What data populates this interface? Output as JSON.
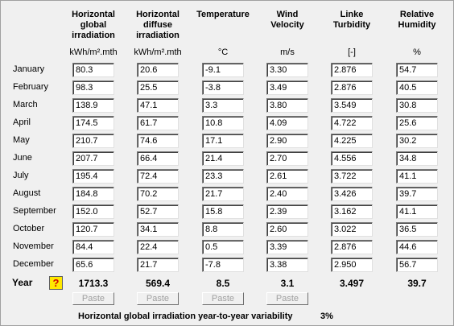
{
  "table": {
    "columns": [
      {
        "title": "Horizontal global irradiation",
        "unit": "kWh/m².mth",
        "total": "1713.3"
      },
      {
        "title": "Horizontal diffuse irradiation",
        "unit": "kWh/m².mth",
        "total": "569.4"
      },
      {
        "title": "Temperature",
        "unit": "°C",
        "total": "8.5"
      },
      {
        "title": "Wind Velocity",
        "unit": "m/s",
        "total": "3.1"
      },
      {
        "title": "Linke Turbidity",
        "unit": "[-]",
        "total": "3.497"
      },
      {
        "title": "Relative Humidity",
        "unit": "%",
        "total": "39.7"
      }
    ],
    "rows": [
      {
        "month": "January",
        "values": [
          "80.3",
          "20.6",
          "-9.1",
          "3.30",
          "2.876",
          "54.7"
        ]
      },
      {
        "month": "February",
        "values": [
          "98.3",
          "25.5",
          "-3.8",
          "3.49",
          "2.876",
          "40.5"
        ]
      },
      {
        "month": "March",
        "values": [
          "138.9",
          "47.1",
          "3.3",
          "3.80",
          "3.549",
          "30.8"
        ]
      },
      {
        "month": "April",
        "values": [
          "174.5",
          "61.7",
          "10.8",
          "4.09",
          "4.722",
          "25.6"
        ]
      },
      {
        "month": "May",
        "values": [
          "210.7",
          "74.6",
          "17.1",
          "2.90",
          "4.225",
          "30.2"
        ]
      },
      {
        "month": "June",
        "values": [
          "207.7",
          "66.4",
          "21.4",
          "2.70",
          "4.556",
          "34.8"
        ]
      },
      {
        "month": "July",
        "values": [
          "195.4",
          "72.4",
          "23.3",
          "2.61",
          "3.722",
          "41.1"
        ]
      },
      {
        "month": "August",
        "values": [
          "184.8",
          "70.2",
          "21.7",
          "2.40",
          "3.426",
          "39.7"
        ]
      },
      {
        "month": "September",
        "values": [
          "152.0",
          "52.7",
          "15.8",
          "2.39",
          "3.162",
          "41.1"
        ]
      },
      {
        "month": "October",
        "values": [
          "120.7",
          "34.1",
          "8.8",
          "2.60",
          "3.022",
          "36.5"
        ]
      },
      {
        "month": "November",
        "values": [
          "84.4",
          "22.4",
          "0.5",
          "3.39",
          "2.876",
          "44.6"
        ]
      },
      {
        "month": "December",
        "values": [
          "65.6",
          "21.7",
          "-7.8",
          "3.38",
          "2.950",
          "56.7"
        ]
      }
    ],
    "year_label": "Year",
    "paste_button": "Paste",
    "variability_label": "Horizontal global irradiation year-to-year variability",
    "variability_value": "3%"
  }
}
